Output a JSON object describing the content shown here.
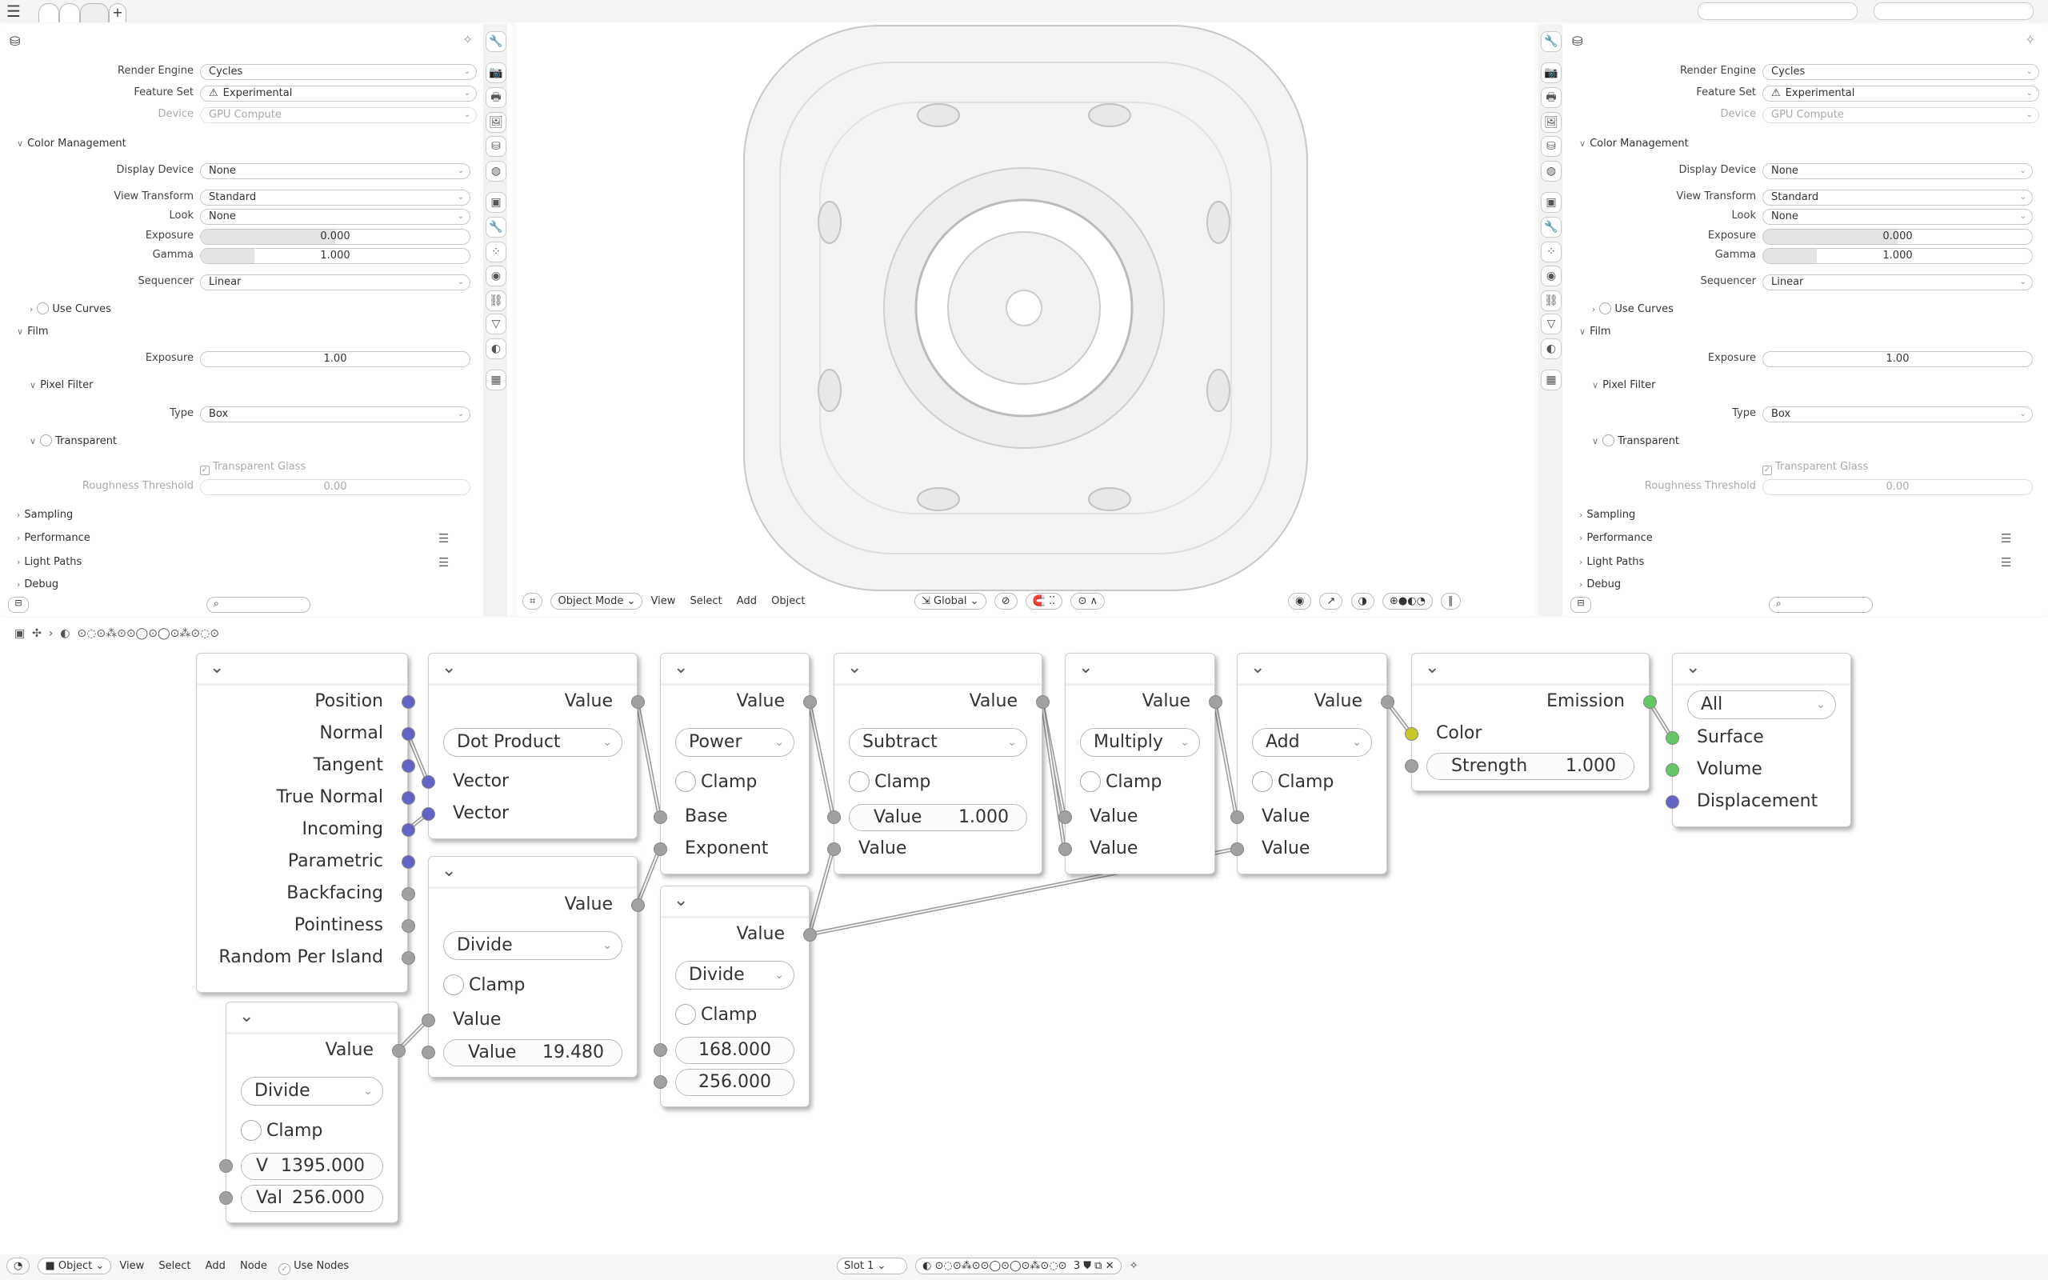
{
  "topbar": {
    "menu_icon": "hamburger-icon",
    "add_tab": "+"
  },
  "properties": {
    "items": [
      {
        "type": "select",
        "label": "Render Engine",
        "value": "Cycles"
      },
      {
        "type": "select",
        "label": "Feature Set",
        "value": "Experimental",
        "icon": "warning-icon"
      },
      {
        "type": "select",
        "label": "Device",
        "value": "GPU Compute",
        "disabled": true
      },
      {
        "type": "section",
        "label": "Color Management",
        "open": true,
        "level": 0
      },
      {
        "type": "select",
        "label": "Display Device",
        "value": "None"
      },
      {
        "type": "select",
        "label": "View Transform",
        "value": "Standard"
      },
      {
        "type": "select",
        "label": "Look",
        "value": "None"
      },
      {
        "type": "slider",
        "label": "Exposure",
        "value": "0.000",
        "fill": 0.5
      },
      {
        "type": "slider",
        "label": "Gamma",
        "value": "1.000",
        "fill": 0.2
      },
      {
        "type": "select",
        "label": "Sequencer",
        "value": "Linear"
      },
      {
        "type": "section",
        "label": "Use Curves",
        "open": false,
        "level": 1,
        "checkbox": true
      },
      {
        "type": "section",
        "label": "Film",
        "open": true,
        "level": 0
      },
      {
        "type": "number",
        "label": "Exposure",
        "value": "1.00"
      },
      {
        "type": "section",
        "label": "Pixel Filter",
        "open": true,
        "level": 1
      },
      {
        "type": "select",
        "label": "Type",
        "value": "Box"
      },
      {
        "type": "section",
        "label": "Transparent",
        "open": true,
        "level": 1,
        "checkbox": true
      },
      {
        "type": "check",
        "label": "Transparent Glass",
        "checked": true,
        "disabled": true
      },
      {
        "type": "number",
        "label": "Roughness Threshold",
        "value": "0.00",
        "disabled": true
      },
      {
        "type": "section",
        "label": "Sampling",
        "open": false,
        "level": 0
      },
      {
        "type": "section",
        "label": "Performance",
        "open": false,
        "level": 0,
        "list": true
      },
      {
        "type": "section",
        "label": "Light Paths",
        "open": false,
        "level": 0,
        "list": true
      },
      {
        "type": "section",
        "label": "Debug",
        "open": false,
        "level": 0
      }
    ],
    "tab_icons": [
      "tool-icon",
      "render-icon",
      "output-icon",
      "view-layer-icon",
      "scene-icon",
      "world-icon",
      "object-icon",
      "modifier-icon",
      "particles-icon",
      "physics-icon",
      "constraints-icon",
      "data-icon",
      "material-icon",
      "texture-icon"
    ]
  },
  "viewport": {
    "header": {
      "mode": "Object Mode",
      "menus": [
        "View",
        "Select",
        "Add",
        "Object"
      ],
      "orientation": "Global"
    }
  },
  "node_editor": {
    "material_name": "⊙◌⊙⁂⊙⊙◯⊙◯⊙⁂⊙◌⊙",
    "socket_colors": {
      "vector": "#6363c7",
      "float": "#a1a1a1",
      "color": "#c7c729",
      "shader": "#63c763"
    },
    "nodes": [
      {
        "rows": [
          {
            "t": "out",
            "label": "Position",
            "s": "vector"
          },
          {
            "t": "out",
            "label": "Normal",
            "s": "vector"
          },
          {
            "t": "out",
            "label": "Tangent",
            "s": "vector"
          },
          {
            "t": "out",
            "label": "True Normal",
            "s": "vector"
          },
          {
            "t": "out",
            "label": "Incoming",
            "s": "vector"
          },
          {
            "t": "out",
            "label": "Parametric",
            "s": "vector"
          },
          {
            "t": "out",
            "label": "Backfacing",
            "s": "float"
          },
          {
            "t": "out",
            "label": "Pointiness",
            "s": "float"
          },
          {
            "t": "out",
            "label": "Random Per Island",
            "s": "float"
          }
        ]
      },
      {
        "rows": [
          {
            "t": "out",
            "label": "Value",
            "s": "float"
          },
          {
            "t": "select",
            "label": "Dot Product"
          },
          {
            "t": "in",
            "label": "Vector",
            "s": "vector"
          },
          {
            "t": "in",
            "label": "Vector",
            "s": "vector"
          }
        ]
      },
      {
        "rows": [
          {
            "t": "out",
            "label": "Value",
            "s": "float"
          },
          {
            "t": "select",
            "label": "Divide"
          },
          {
            "t": "check",
            "label": "Clamp"
          },
          {
            "t": "in",
            "label": "Value",
            "s": "float"
          },
          {
            "t": "field",
            "label": "Value",
            "value": "19.480",
            "s": "float"
          }
        ]
      },
      {
        "rows": [
          {
            "t": "out",
            "label": "Value",
            "s": "float"
          },
          {
            "t": "select",
            "label": "Power"
          },
          {
            "t": "check",
            "label": "Clamp"
          },
          {
            "t": "in",
            "label": "Base",
            "s": "float"
          },
          {
            "t": "in",
            "label": "Exponent",
            "s": "float"
          }
        ]
      },
      {
        "rows": [
          {
            "t": "out",
            "label": "Value",
            "s": "float"
          },
          {
            "t": "select",
            "label": "Divide"
          },
          {
            "t": "check",
            "label": "Clamp"
          },
          {
            "t": "field",
            "label": "",
            "value": "168.000",
            "s": "float"
          },
          {
            "t": "field",
            "label": "",
            "value": "256.000",
            "s": "float"
          }
        ]
      },
      {
        "rows": [
          {
            "t": "out",
            "label": "Value",
            "s": "float"
          },
          {
            "t": "select",
            "label": "Subtract"
          },
          {
            "t": "check",
            "label": "Clamp"
          },
          {
            "t": "field",
            "label": "Value",
            "value": "1.000",
            "s": "float"
          },
          {
            "t": "in",
            "label": "Value",
            "s": "float"
          }
        ]
      },
      {
        "rows": [
          {
            "t": "out",
            "label": "Value",
            "s": "float"
          },
          {
            "t": "select",
            "label": "Multiply"
          },
          {
            "t": "check",
            "label": "Clamp"
          },
          {
            "t": "in",
            "label": "Value",
            "s": "float"
          },
          {
            "t": "in",
            "label": "Value",
            "s": "float"
          }
        ]
      },
      {
        "rows": [
          {
            "t": "out",
            "label": "Value",
            "s": "float"
          },
          {
            "t": "select",
            "label": "Add"
          },
          {
            "t": "check",
            "label": "Clamp"
          },
          {
            "t": "in",
            "label": "Value",
            "s": "float"
          },
          {
            "t": "in",
            "label": "Value",
            "s": "float"
          }
        ]
      },
      {
        "rows": [
          {
            "t": "out",
            "label": "Emission",
            "s": "shader"
          },
          {
            "t": "in",
            "label": "Color",
            "s": "color"
          },
          {
            "t": "field",
            "label": "Strength",
            "value": "1.000",
            "s": "float"
          }
        ]
      },
      {
        "rows": [
          {
            "t": "selecttop",
            "label": "All"
          },
          {
            "t": "in",
            "label": "Surface",
            "s": "shader"
          },
          {
            "t": "in",
            "label": "Volume",
            "s": "shader"
          },
          {
            "t": "in",
            "label": "Displacement",
            "s": "vector"
          }
        ]
      },
      {
        "rows": [
          {
            "t": "out",
            "label": "Value",
            "s": "float"
          },
          {
            "t": "select",
            "label": "Divide"
          },
          {
            "t": "check",
            "label": "Clamp"
          },
          {
            "t": "field",
            "label": "V",
            "value": "1395.000",
            "s": "float"
          },
          {
            "t": "field",
            "label": "Val",
            "value": "256.000",
            "s": "float"
          }
        ]
      }
    ],
    "links": [
      {
        "from": [
          0,
          1
        ],
        "to": [
          1,
          2
        ]
      },
      {
        "from": [
          0,
          4
        ],
        "to": [
          1,
          3
        ]
      },
      {
        "from": [
          1,
          0
        ],
        "to": [
          3,
          3
        ]
      },
      {
        "from": [
          2,
          0
        ],
        "to": [
          3,
          4
        ]
      },
      {
        "from": [
          10,
          0
        ],
        "to": [
          2,
          3
        ]
      },
      {
        "from": [
          3,
          0
        ],
        "to": [
          5,
          3
        ]
      },
      {
        "from": [
          4,
          0
        ],
        "to": [
          5,
          4
        ]
      },
      {
        "from": [
          4,
          0
        ],
        "to": [
          7,
          4
        ]
      },
      {
        "from": [
          5,
          0
        ],
        "to": [
          6,
          3
        ]
      },
      {
        "from": [
          5,
          0
        ],
        "to": [
          6,
          4
        ]
      },
      {
        "from": [
          6,
          0
        ],
        "to": [
          7,
          3
        ]
      },
      {
        "from": [
          7,
          0
        ],
        "to": [
          8,
          1
        ]
      },
      {
        "from": [
          8,
          0
        ],
        "to": [
          9,
          1
        ]
      }
    ]
  },
  "statusbar": {
    "mode": "Object",
    "menus": [
      "View",
      "Select",
      "Add",
      "Node"
    ],
    "use_nodes": "Use Nodes",
    "slot": "Slot 1",
    "material_name": "⊙◌⊙⁂⊙⊙◯⊙◯⊙⁂⊙◌⊙",
    "users": "3"
  }
}
